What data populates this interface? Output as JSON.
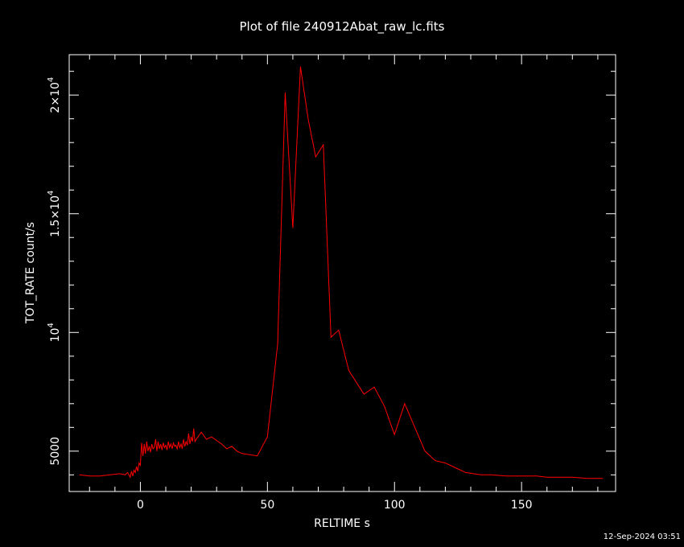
{
  "chart_data": {
    "type": "line",
    "title": "Plot of file 240912Abat_raw_lc.fits",
    "xlabel": "RELTIME  s",
    "ylabel": "TOT_RATE  count/s",
    "timestamp": "12-Sep-2024 03:51",
    "xlim": [
      -28,
      187
    ],
    "ylim": [
      3300,
      21700
    ],
    "line_color": "#ff0000",
    "background": "#000000",
    "foreground": "#ffffff",
    "x_ticks": [
      {
        "value": 0,
        "label": "0"
      },
      {
        "value": 50,
        "label": "50"
      },
      {
        "value": 100,
        "label": "100"
      },
      {
        "value": 150,
        "label": "150"
      }
    ],
    "y_ticks": [
      {
        "value": 5000,
        "mantissa": "5000",
        "exponent": ""
      },
      {
        "value": 10000,
        "mantissa": "10",
        "exponent": "4"
      },
      {
        "value": 15000,
        "mantissa": "1.5×10",
        "exponent": "4"
      },
      {
        "value": 20000,
        "mantissa": "2×10",
        "exponent": "4"
      }
    ],
    "series": [
      {
        "x": [
          -24,
          -20,
          -16,
          -12,
          -8,
          -6,
          -5,
          -4,
          -3.5,
          -3,
          -2.5,
          -2,
          -1.5,
          -1,
          -0.5,
          0,
          0.5,
          1,
          1.5,
          2,
          2.5,
          3,
          3.5,
          4,
          4.5,
          5,
          5.5,
          6,
          6.5,
          7,
          7.5,
          8,
          8.5,
          9,
          9.5,
          10,
          10.5,
          11,
          11.5,
          12,
          12.5,
          13,
          13.5,
          14,
          14.5,
          15,
          15.5,
          16,
          16.5,
          17,
          17.5,
          18,
          18.5,
          19,
          19.5,
          20,
          20.5,
          21,
          21.5,
          22,
          24,
          26,
          28,
          30,
          32,
          34,
          36,
          38,
          40,
          46,
          50,
          54,
          57,
          60,
          63,
          66,
          69,
          72,
          75,
          78,
          82,
          88,
          92,
          96,
          100,
          104,
          108,
          112,
          116,
          120,
          124,
          128,
          134,
          138,
          144,
          150,
          156,
          160,
          166,
          170,
          176,
          180,
          182
        ],
        "values": [
          4000,
          3950,
          3950,
          4000,
          4050,
          4000,
          4100,
          3900,
          4150,
          3950,
          4200,
          4100,
          4350,
          4150,
          4500,
          4400,
          5350,
          4800,
          5300,
          4900,
          5400,
          5000,
          5200,
          4950,
          5300,
          5100,
          5150,
          5500,
          5000,
          5400,
          5100,
          5300,
          5050,
          5350,
          5150,
          5250,
          5050,
          5400,
          5150,
          5300,
          5100,
          5350,
          5200,
          5250,
          5100,
          5400,
          5150,
          5300,
          5100,
          5500,
          5200,
          5400,
          5250,
          5750,
          5300,
          5600,
          5400,
          5950,
          5400,
          5500,
          5800,
          5500,
          5600,
          5450,
          5300,
          5100,
          5200,
          5000,
          4900,
          4800,
          5600,
          9500,
          20100,
          14400,
          21200,
          19000,
          17400,
          17900,
          9800,
          10100,
          8400,
          7400,
          7700,
          6900,
          5700,
          7000,
          6000,
          5000,
          4600,
          4500,
          4300,
          4100,
          4000,
          4000,
          3950,
          3950,
          3950,
          3900,
          3900,
          3900,
          3850,
          3850,
          3850
        ]
      }
    ]
  }
}
